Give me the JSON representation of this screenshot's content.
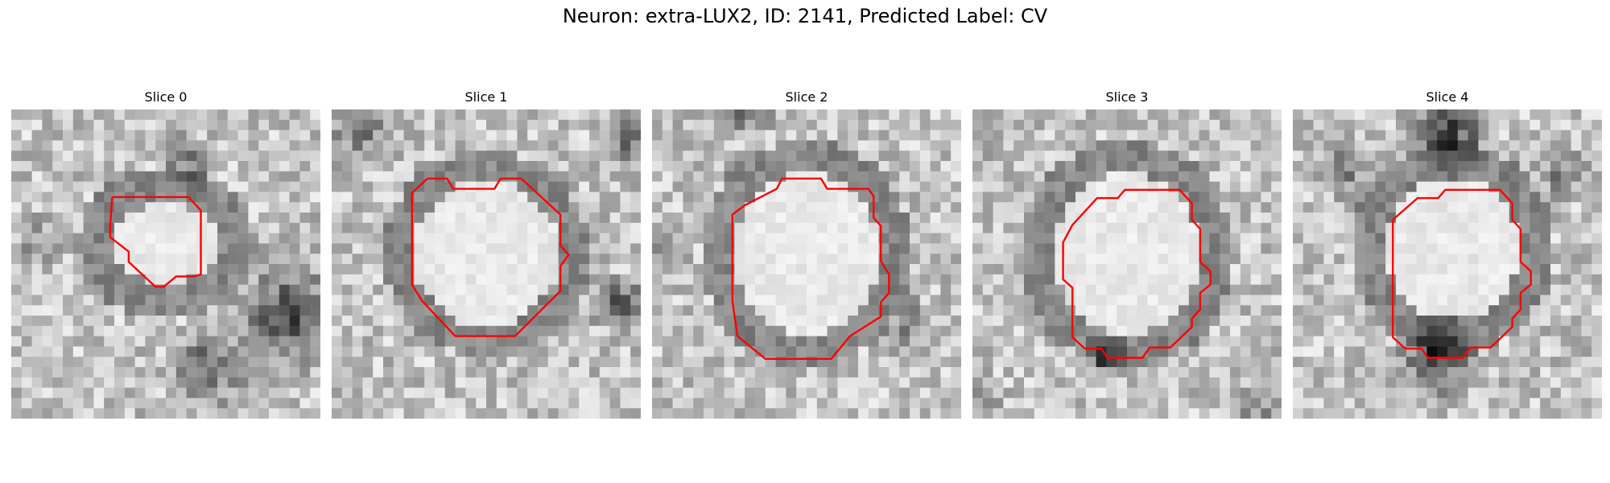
{
  "figure": {
    "title": "Neuron: extra-LUX2, ID: 2141, Predicted Label: CV"
  },
  "panels": [
    {
      "title": "Slice 0",
      "contour_color": "#ff0000"
    },
    {
      "title": "Slice 1",
      "contour_color": "#ff0000"
    },
    {
      "title": "Slice 2",
      "contour_color": "#ff0000"
    },
    {
      "title": "Slice 3",
      "contour_color": "#ff0000"
    },
    {
      "title": "Slice 4",
      "contour_color": "#ff0000"
    }
  ]
}
